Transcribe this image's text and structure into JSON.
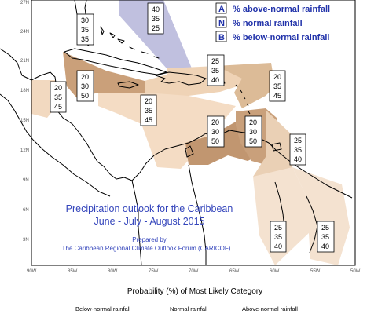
{
  "legend_box": [
    {
      "key": "A",
      "text": "% above-normal rainfall"
    },
    {
      "key": "N",
      "text": "% normal rainfall"
    },
    {
      "key": "B",
      "text": "% below-normal rainfall"
    }
  ],
  "title_line1": "Precipitation outlook for the Caribbean",
  "title_line2": "June - July - August 2015",
  "prepared_by": "Prepared by",
  "prepared_org": "The Caribbean Regional Climate Outlook Forum (CARICOF)",
  "y_ticks": [
    "27N",
    "24N",
    "21N",
    "18N",
    "15N",
    "12N",
    "9N",
    "6N",
    "3N"
  ],
  "x_ticks": [
    "90W",
    "85W",
    "80W",
    "75W",
    "70W",
    "65W",
    "60W",
    "55W",
    "50W"
  ],
  "bottom_caption": "Probability (%) of Most Likely Category",
  "bottom_legend": [
    "Below-normal rainfall",
    "Normal rainfall",
    "Above-normal rainfall"
  ],
  "regions": [
    {
      "name": "bahamas-north",
      "values": [
        "40",
        "35",
        "25"
      ],
      "category": "above",
      "fill": "#b9b9dc"
    },
    {
      "name": "bahamas-south",
      "values": [
        "30",
        "35",
        "35"
      ],
      "category": "none",
      "fill": "none"
    },
    {
      "name": "cuba-jamaica",
      "values": [
        "20",
        "30",
        "50"
      ],
      "category": "below",
      "fill": "#caa07a"
    },
    {
      "name": "hispaniola",
      "values": [
        "25",
        "35",
        "40"
      ],
      "category": "below",
      "fill": "#efd3b6"
    },
    {
      "name": "lesser-antilles-north",
      "values": [
        "20",
        "35",
        "45"
      ],
      "category": "below",
      "fill": "#dcbb97"
    },
    {
      "name": "belize-yucatan",
      "values": [
        "20",
        "35",
        "45"
      ],
      "category": "below",
      "fill": "#f2d9c0"
    },
    {
      "name": "central-caribbean",
      "values": [
        "20",
        "35",
        "45"
      ],
      "category": "below",
      "fill": "#f4dcc4"
    },
    {
      "name": "colombia-venezuela",
      "values": [
        "20",
        "30",
        "50"
      ],
      "category": "below",
      "fill": "#c19670"
    },
    {
      "name": "windward-islands",
      "values": [
        "20",
        "30",
        "50"
      ],
      "category": "below",
      "fill": "#c9a07b"
    },
    {
      "name": "trinidad-tobago",
      "values": [
        "25",
        "35",
        "40"
      ],
      "category": "below",
      "fill": "#ead0b5"
    },
    {
      "name": "guyana",
      "values": [
        "25",
        "35",
        "40"
      ],
      "category": "below",
      "fill": "#f4e2d0"
    },
    {
      "name": "suriname-guiana",
      "values": [
        "25",
        "35",
        "40"
      ],
      "category": "below",
      "fill": "#f4e2d0"
    }
  ],
  "colors": {
    "ocean": "#ffffff",
    "coast": "#000000",
    "legend_text": "#2233aa",
    "title_text": "#3344bb"
  }
}
